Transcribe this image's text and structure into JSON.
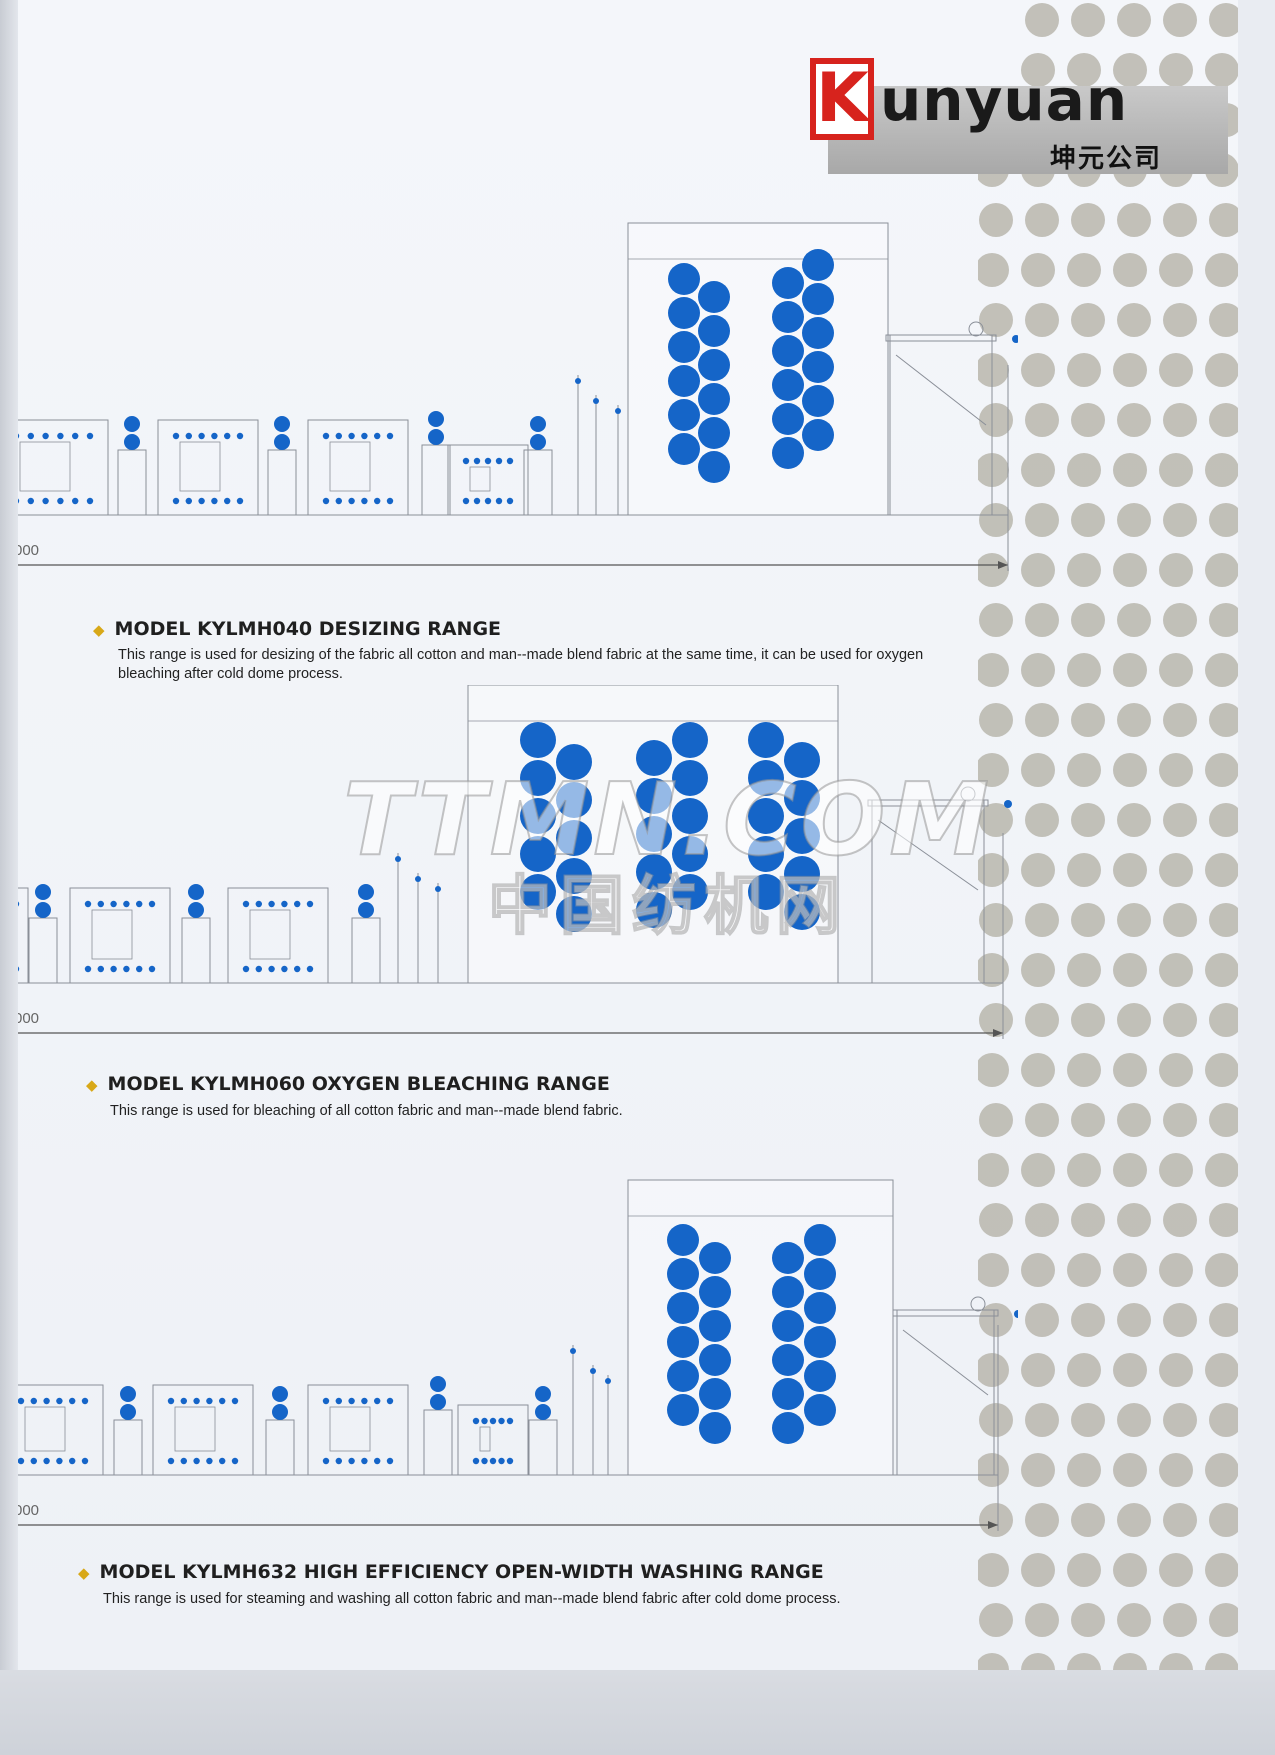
{
  "brand": {
    "logo_text": "Kunyuan",
    "logo_cn": "坤元公司"
  },
  "sections": [
    {
      "title": "MODEL KYLMH040 DESIZING RANGE",
      "description": "This range is used for desizing of the fabric all cotton and man--made blend fabric at the same time, it can be used for oxygen bleaching after cold dome process.",
      "dimension_label": "000"
    },
    {
      "title": "MODEL KYLMH060 OXYGEN BLEACHING RANGE",
      "description": "This range is used for bleaching of all cotton fabric and man--made blend fabric.",
      "dimension_label": "000"
    },
    {
      "title": "MODEL KYLMH632 HIGH EFFICIENCY OPEN-WIDTH WASHING RANGE",
      "description": "This range is used  for steaming and washing all cotton fabric and man--made blend fabric after cold dome process.",
      "dimension_label": "000"
    }
  ],
  "watermark": {
    "line1": "TTMN.COM",
    "line2": "中国纺机网"
  },
  "colors": {
    "roller_blue": "#1565c8",
    "line_gray": "#8a8f98",
    "accent_gold": "#d8a818",
    "logo_red": "#d7231d",
    "dot_gray": "#b9b6ad"
  }
}
